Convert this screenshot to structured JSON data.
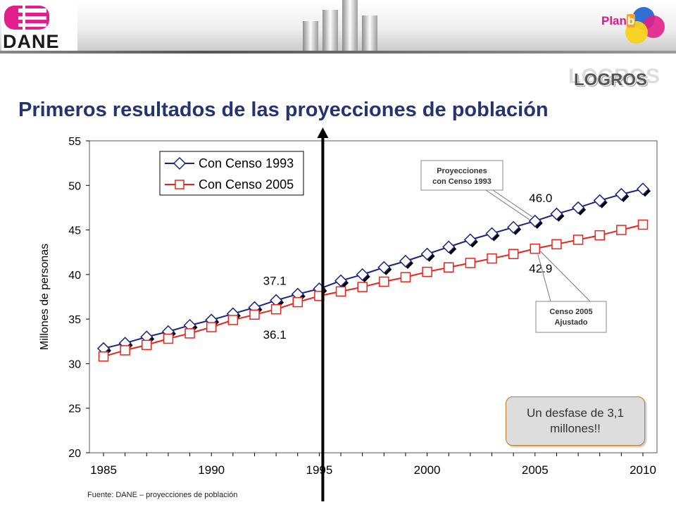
{
  "header": {
    "logo_text": "DANE",
    "plan_prefix": "Plan",
    "plan_suffix": "b",
    "section_label": "LOGROS"
  },
  "title": "Primeros resultados de las proyecciones de población",
  "source": "Fuente: DANE – proyecciones de población",
  "callout": "Un desfase de 3,1 millones!!",
  "colors": {
    "series_1993": "#1a237e",
    "series_2005": "#e8231c",
    "title": "#24346e",
    "arrow": "#000000"
  },
  "chart_data": {
    "type": "line",
    "ylabel": "Millones de personas",
    "xlabel": "",
    "xlim": [
      1985,
      2010
    ],
    "ylim": [
      20,
      55
    ],
    "x_ticks": [
      "1985",
      "1990",
      "1995",
      "2000",
      "2005",
      "2010"
    ],
    "y_ticks": [
      "20",
      "25",
      "30",
      "35",
      "40",
      "45",
      "50",
      "55"
    ],
    "grid": false,
    "legend_position": "top-left",
    "x": [
      1985,
      1986,
      1987,
      1988,
      1989,
      1990,
      1991,
      1992,
      1993,
      1994,
      1995,
      1996,
      1997,
      1998,
      1999,
      2000,
      2001,
      2002,
      2003,
      2004,
      2005,
      2006,
      2007,
      2008,
      2009,
      2010
    ],
    "series": [
      {
        "name": "Con Censo 1993",
        "marker": "diamond",
        "values": [
          31.7,
          32.3,
          33.0,
          33.6,
          34.3,
          34.9,
          35.6,
          36.3,
          37.1,
          37.8,
          38.4,
          39.3,
          40.0,
          40.8,
          41.5,
          42.3,
          43.1,
          43.9,
          44.6,
          45.3,
          46.0,
          46.8,
          47.5,
          48.3,
          49.0,
          49.6
        ]
      },
      {
        "name": "Con Censo 2005",
        "marker": "square",
        "values": [
          30.8,
          31.5,
          32.1,
          32.8,
          33.4,
          34.1,
          34.9,
          35.5,
          36.1,
          36.9,
          37.6,
          38.1,
          38.6,
          39.2,
          39.7,
          40.3,
          40.8,
          41.3,
          41.8,
          42.3,
          42.9,
          43.4,
          43.9,
          44.4,
          45.0,
          45.6
        ]
      }
    ],
    "vertical_marker_year": 1995,
    "annotations": [
      {
        "text": "37.1",
        "year": 1993,
        "value": 37.1
      },
      {
        "text": "36.1",
        "year": 1993,
        "value": 36.1
      },
      {
        "text": "46.0",
        "year": 2005,
        "value": 46.0
      },
      {
        "text": "42.9",
        "year": 2005,
        "value": 42.9
      }
    ],
    "label_boxes": [
      {
        "text_lines": [
          "Proyecciones",
          "con Censo 1993"
        ],
        "points_to_year": 2005,
        "series": "Con Censo 1993"
      },
      {
        "text_lines": [
          "Censo 2005",
          "Ajustado"
        ],
        "points_to_year": 2005,
        "series": "Con Censo 2005"
      }
    ]
  }
}
